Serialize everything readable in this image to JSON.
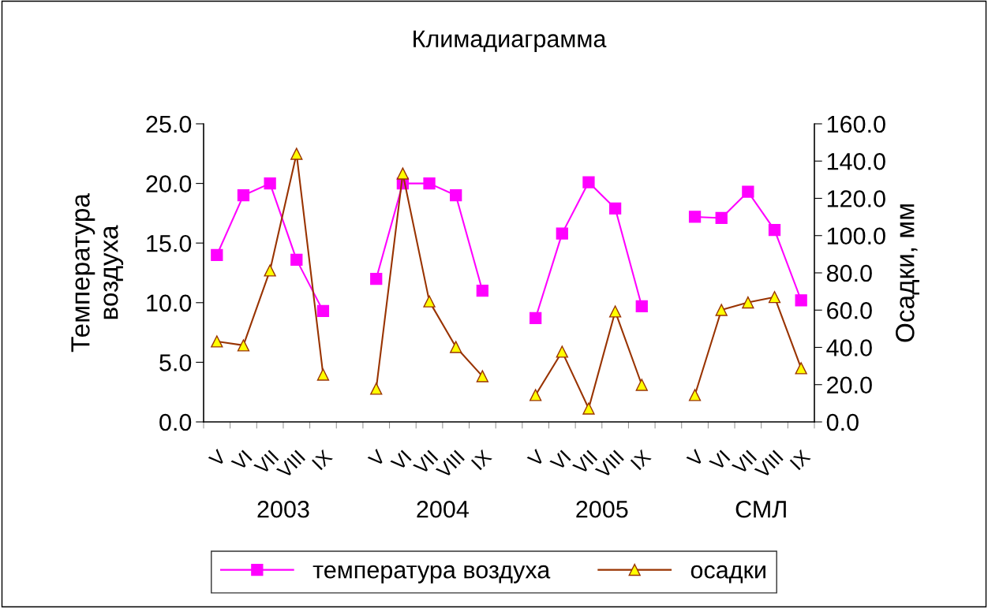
{
  "chart_data": {
    "type": "line",
    "title": "Климадиаграмма",
    "ylabel": "Температура\nвоздуха",
    "y2label": "Осадки, мм",
    "categories": [
      "V",
      "VI",
      "VII",
      "VIII",
      "IX",
      null,
      "V",
      "VI",
      "VII",
      "VIII",
      "IX",
      null,
      "V",
      "VI",
      "VII",
      "VIII",
      "IX",
      null,
      "V",
      "VI",
      "VII",
      "VIII",
      "IX"
    ],
    "annotations": [
      "2003",
      "2004",
      "2005",
      "СМЛ"
    ],
    "series": [
      {
        "name": "температура воздуха",
        "color": "#ff00ff",
        "marker": "square",
        "values": [
          14.0,
          19.0,
          20.0,
          13.6,
          9.3,
          null,
          12.0,
          20.0,
          20.0,
          19.0,
          11.0,
          null,
          8.7,
          15.8,
          20.1,
          17.9,
          9.7,
          null,
          17.2,
          17.1,
          19.3,
          16.1,
          10.2
        ]
      },
      {
        "name": "осадки",
        "color": "#993300",
        "marker": "triangle",
        "axis": "y2",
        "values": [
          43.2,
          41.1,
          81.3,
          143.9,
          25.4,
          null,
          17.8,
          133.3,
          64.7,
          40.2,
          24.5,
          null,
          14.4,
          37.7,
          7.2,
          59.3,
          19.9,
          null,
          14.4,
          60.1,
          64.1,
          67.0,
          28.8
        ]
      }
    ],
    "ylim": [
      0,
      25
    ],
    "yticks": [
      {
        "value": 0,
        "label": "0.0"
      },
      {
        "value": 5,
        "label": "5.0"
      },
      {
        "value": 10,
        "label": "10.0"
      },
      {
        "value": 15,
        "label": "15.0"
      },
      {
        "value": 20,
        "label": "20.0"
      },
      {
        "value": 25,
        "label": "25.0"
      }
    ],
    "y2lim": [
      0,
      160
    ],
    "y2ticks": [
      {
        "value": 0,
        "label": "0.0"
      },
      {
        "value": 20,
        "label": "20.0"
      },
      {
        "value": 40,
        "label": "40.0"
      },
      {
        "value": 60,
        "label": "60.0"
      },
      {
        "value": 80,
        "label": "80.0"
      },
      {
        "value": 100,
        "label": "100.0"
      },
      {
        "value": 120,
        "label": "120.0"
      },
      {
        "value": 140,
        "label": "140.0"
      },
      {
        "value": 160,
        "label": "160.0"
      }
    ],
    "grid": false,
    "legend": "bottom",
    "line_style": "solid"
  }
}
